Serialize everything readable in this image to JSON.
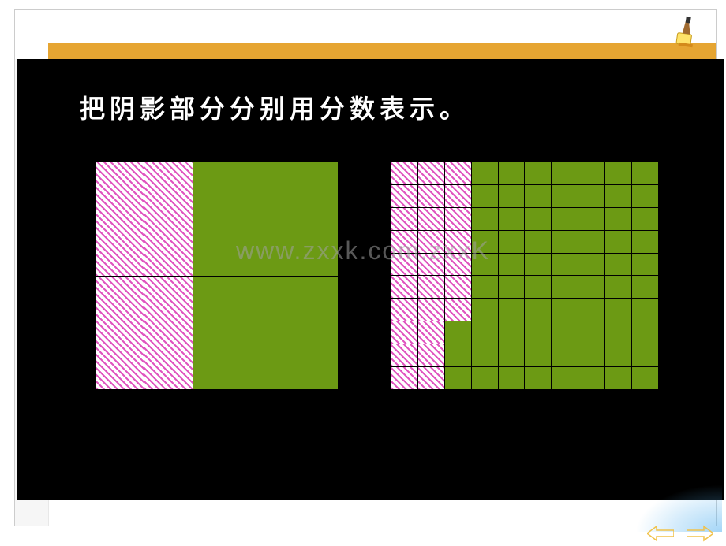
{
  "title": "把阴影部分分别用分数表示。",
  "watermark": "www.zxxk.com.zxxK",
  "orange_bar_color": "#e6a532",
  "stage_background": "#000000",
  "grid_fill": "#6c9a14",
  "hatch_color": "#e055c0",
  "hatch_bg": "#ffffff",
  "arrow_color": "#f0c24a",
  "left_grid": {
    "rows": 2,
    "cols": 5,
    "shaded_cells": [
      [
        0,
        0
      ],
      [
        0,
        1
      ],
      [
        1,
        0
      ],
      [
        1,
        1
      ]
    ]
  },
  "right_grid": {
    "rows": 10,
    "cols": 10,
    "shaded_cells": [
      [
        0,
        0
      ],
      [
        0,
        1
      ],
      [
        0,
        2
      ],
      [
        1,
        0
      ],
      [
        1,
        1
      ],
      [
        1,
        2
      ],
      [
        2,
        0
      ],
      [
        2,
        1
      ],
      [
        2,
        2
      ],
      [
        3,
        0
      ],
      [
        3,
        1
      ],
      [
        3,
        2
      ],
      [
        4,
        0
      ],
      [
        4,
        1
      ],
      [
        4,
        2
      ],
      [
        5,
        0
      ],
      [
        5,
        1
      ],
      [
        5,
        2
      ],
      [
        6,
        0
      ],
      [
        6,
        1
      ],
      [
        6,
        2
      ],
      [
        7,
        0
      ],
      [
        7,
        1
      ],
      [
        8,
        0
      ],
      [
        8,
        1
      ],
      [
        9,
        0
      ],
      [
        9,
        1
      ]
    ]
  }
}
